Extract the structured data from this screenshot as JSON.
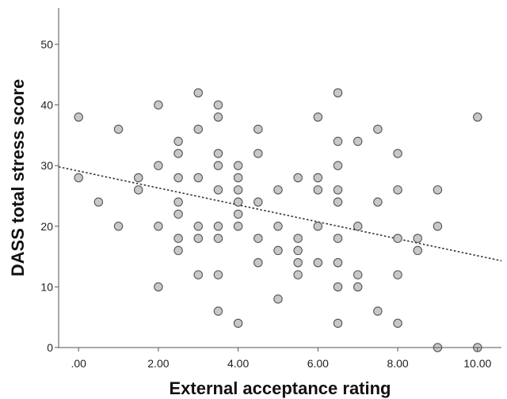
{
  "chart_data": {
    "type": "scatter",
    "title": "",
    "xlabel": "External acceptance rating",
    "ylabel": "DASS total stress score",
    "xlim": [
      -0.5,
      10.6
    ],
    "ylim": [
      0,
      56
    ],
    "x_ticks": [
      0,
      2,
      4,
      6,
      8,
      10
    ],
    "x_tick_labels": [
      ".00",
      "2.00",
      "4.00",
      "6.00",
      "8.00",
      "10.00"
    ],
    "y_ticks": [
      0,
      10,
      20,
      30,
      40,
      50
    ],
    "y_tick_labels": [
      "0",
      "10",
      "20",
      "30",
      "40",
      "50"
    ],
    "grid": false,
    "legend": "none",
    "point_fill": "#c8c8c8",
    "point_stroke": "#555555",
    "points": [
      [
        0,
        38
      ],
      [
        0,
        28
      ],
      [
        0.5,
        24
      ],
      [
        1,
        36
      ],
      [
        1,
        20
      ],
      [
        1.5,
        28
      ],
      [
        1.5,
        26
      ],
      [
        2,
        40
      ],
      [
        2,
        30
      ],
      [
        2,
        20
      ],
      [
        2,
        10
      ],
      [
        2.5,
        34
      ],
      [
        2.5,
        32
      ],
      [
        2.5,
        28
      ],
      [
        2.5,
        24
      ],
      [
        2.5,
        22
      ],
      [
        2.5,
        18
      ],
      [
        2.5,
        16
      ],
      [
        3,
        42
      ],
      [
        3,
        36
      ],
      [
        3,
        28
      ],
      [
        3,
        20
      ],
      [
        3,
        18
      ],
      [
        3,
        12
      ],
      [
        3.5,
        40
      ],
      [
        3.5,
        38
      ],
      [
        3.5,
        32
      ],
      [
        3.5,
        30
      ],
      [
        3.5,
        26
      ],
      [
        3.5,
        20
      ],
      [
        3.5,
        18
      ],
      [
        3.5,
        12
      ],
      [
        3.5,
        6
      ],
      [
        4,
        30
      ],
      [
        4,
        28
      ],
      [
        4,
        26
      ],
      [
        4,
        24
      ],
      [
        4,
        22
      ],
      [
        4,
        20
      ],
      [
        4,
        4
      ],
      [
        4.5,
        36
      ],
      [
        4.5,
        32
      ],
      [
        4.5,
        24
      ],
      [
        4.5,
        18
      ],
      [
        4.5,
        14
      ],
      [
        5,
        26
      ],
      [
        5,
        20
      ],
      [
        5,
        16
      ],
      [
        5,
        8
      ],
      [
        5.5,
        28
      ],
      [
        5.5,
        18
      ],
      [
        5.5,
        16
      ],
      [
        5.5,
        14
      ],
      [
        5.5,
        12
      ],
      [
        6,
        38
      ],
      [
        6,
        28
      ],
      [
        6,
        26
      ],
      [
        6,
        20
      ],
      [
        6,
        14
      ],
      [
        6.5,
        42
      ],
      [
        6.5,
        34
      ],
      [
        6.5,
        30
      ],
      [
        6.5,
        26
      ],
      [
        6.5,
        24
      ],
      [
        6.5,
        18
      ],
      [
        6.5,
        14
      ],
      [
        6.5,
        10
      ],
      [
        6.5,
        4
      ],
      [
        7,
        34
      ],
      [
        7,
        20
      ],
      [
        7,
        12
      ],
      [
        7,
        10
      ],
      [
        7.5,
        36
      ],
      [
        7.5,
        24
      ],
      [
        7.5,
        6
      ],
      [
        8,
        32
      ],
      [
        8,
        26
      ],
      [
        8,
        18
      ],
      [
        8,
        12
      ],
      [
        8,
        4
      ],
      [
        8.5,
        18
      ],
      [
        8.5,
        16
      ],
      [
        9,
        26
      ],
      [
        9,
        20
      ],
      [
        9,
        0
      ],
      [
        10,
        38
      ],
      [
        10,
        0
      ]
    ],
    "fit_line": {
      "style": "dotted",
      "color": "#333333",
      "x": [
        -0.5,
        10.6
      ],
      "y": [
        29.8,
        14.3
      ]
    }
  }
}
